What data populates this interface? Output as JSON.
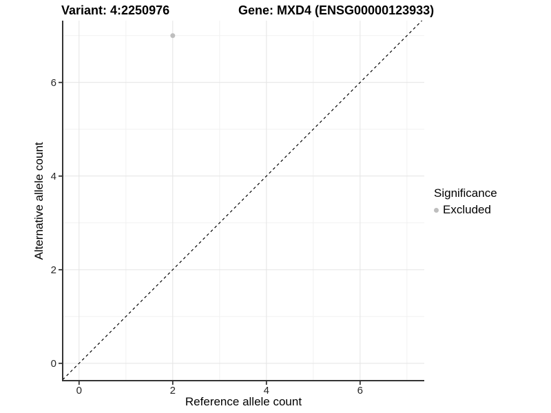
{
  "header": {
    "variant_title": "Variant: 4:2250976",
    "gene_title": "Gene: MXD4 (ENSG00000123933)"
  },
  "legend": {
    "title": "Significance",
    "items": [
      {
        "label": "Excluded",
        "color": "#bebebe",
        "marker": "circle-icon"
      }
    ],
    "position": "right"
  },
  "chart_data": {
    "type": "scatter",
    "xlabel": "Reference allele count",
    "ylabel": "Alternative allele count",
    "x_ticks": [
      0,
      2,
      4,
      6
    ],
    "y_ticks": [
      0,
      2,
      4,
      6
    ],
    "x_minor_ticks": [
      1,
      3,
      5,
      7
    ],
    "y_minor_ticks": [
      1,
      3,
      5,
      7
    ],
    "xlim": [
      -0.35,
      7.37
    ],
    "ylim": [
      -0.37,
      7.32
    ],
    "grid": true,
    "legend_position": "right",
    "series": [
      {
        "name": "Excluded",
        "color": "#bebebe",
        "points": [
          {
            "x": 2,
            "y": 7
          }
        ]
      }
    ],
    "reference_line": {
      "slope": 1,
      "intercept": 0,
      "style": "dashed",
      "color": "#000000"
    },
    "colors": {
      "background": "#ffffff",
      "grid_major": "#e4e4e4",
      "grid_minor": "#f1f1f1",
      "axis_line": "#333333",
      "tick": "#333333",
      "tick_label": "#262626"
    }
  }
}
